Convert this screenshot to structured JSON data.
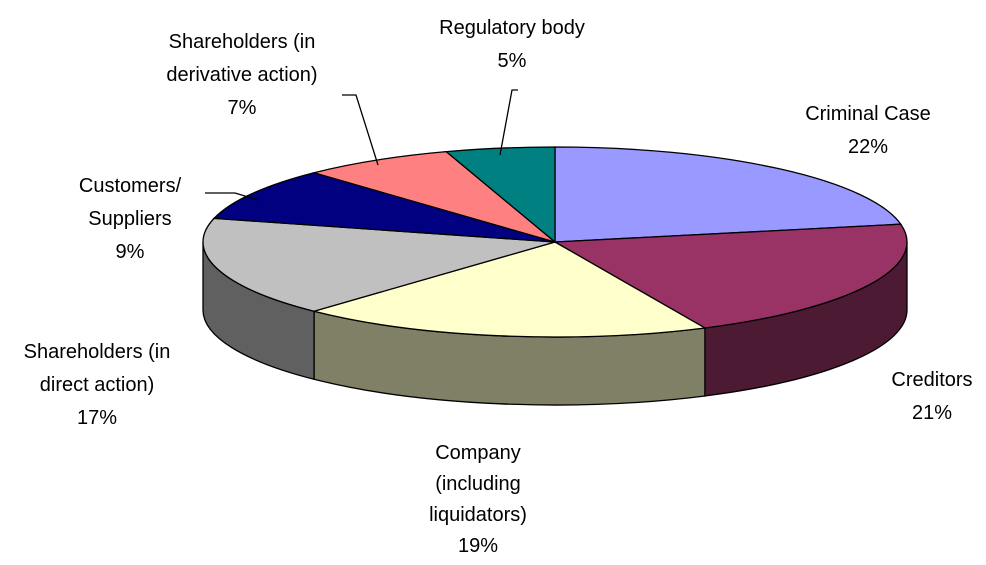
{
  "chart_data": {
    "type": "pie",
    "categories": [
      "Criminal Case",
      "Creditors",
      "Company (including liquidators)",
      "Shareholders (in direct action)",
      "Customers/ Suppliers",
      "Shareholders (in derivative action)",
      "Regulatory body"
    ],
    "values": [
      22,
      21,
      19,
      17,
      9,
      7,
      5
    ],
    "value_labels": [
      "22%",
      "21%",
      "19%",
      "17%",
      "9%",
      "7%",
      "5%"
    ],
    "colors": [
      "#9999ff",
      "#993366",
      "#ffffcc",
      "#c0c0c0",
      "#000080",
      "#ff8080",
      "#008080"
    ],
    "three_d": true
  }
}
